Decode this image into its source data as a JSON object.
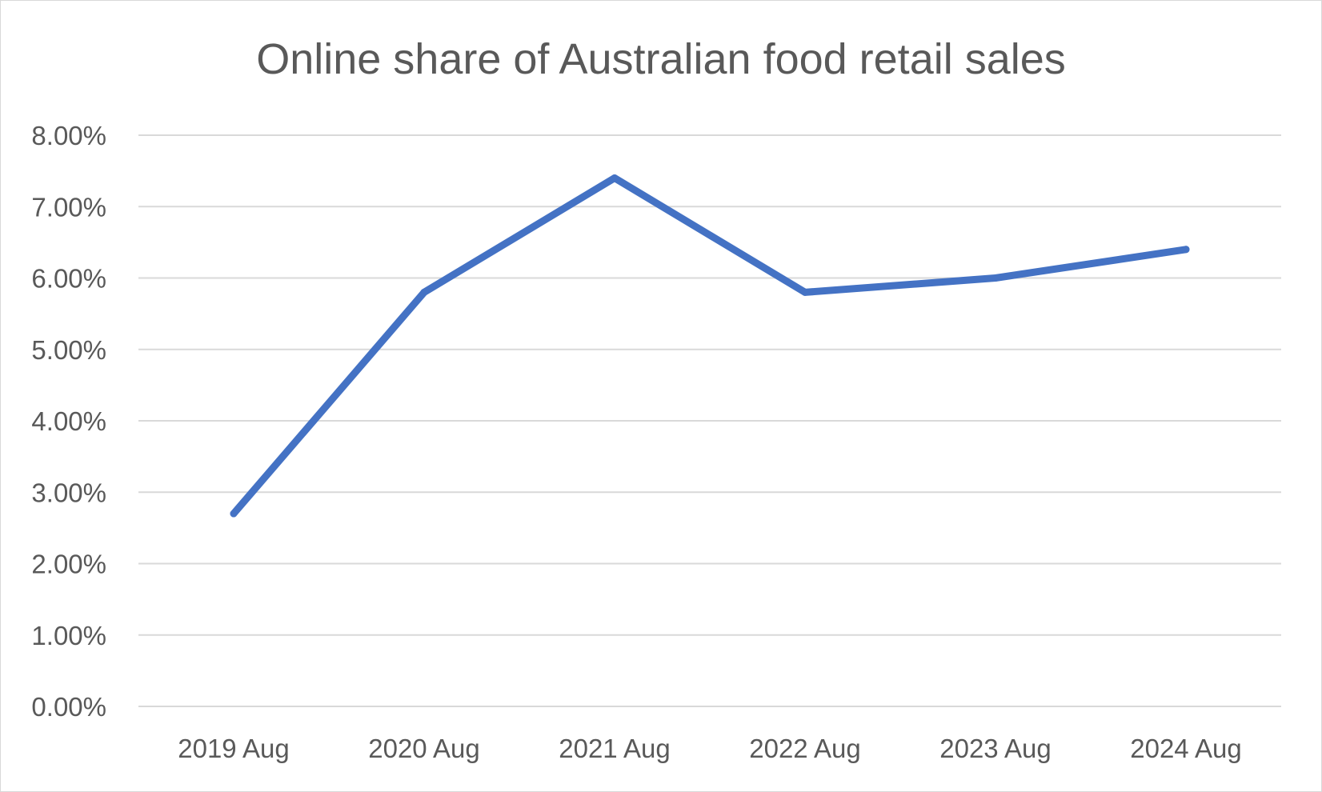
{
  "chart_data": {
    "type": "line",
    "title": "Online share of Australian food retail sales",
    "xlabel": "",
    "ylabel": "",
    "categories": [
      "2019 Aug",
      "2020 Aug",
      "2021 Aug",
      "2022 Aug",
      "2023 Aug",
      "2024 Aug"
    ],
    "series": [
      {
        "values": [
          2.7,
          5.8,
          7.4,
          5.8,
          6.0,
          6.4
        ],
        "color": "#4472C4"
      }
    ],
    "ylim": [
      0,
      8
    ],
    "yticks": [
      "0.00%",
      "1.00%",
      "2.00%",
      "3.00%",
      "4.00%",
      "5.00%",
      "6.00%",
      "7.00%",
      "8.00%"
    ],
    "grid": true,
    "legend": "none",
    "colors": {
      "gridline": "#d9d9d9",
      "text": "#595959",
      "line": "#4472C4"
    }
  }
}
